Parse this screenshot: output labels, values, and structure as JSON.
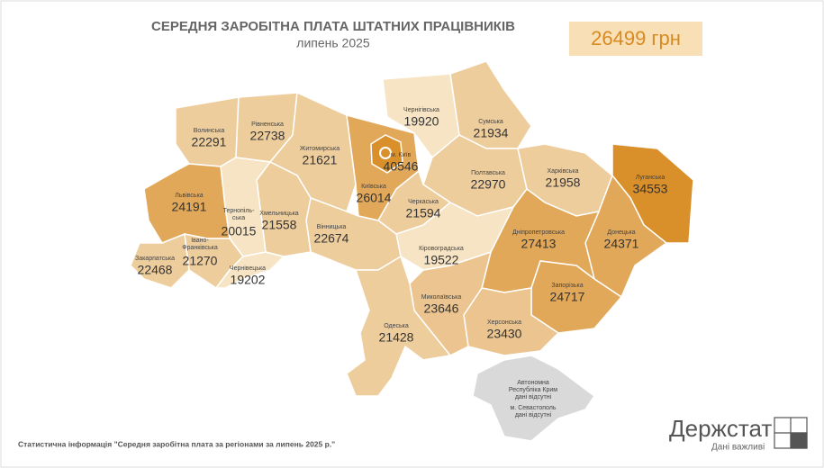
{
  "header": {
    "title": "СЕРЕДНЯ ЗАРОБІТНА ПЛАТА ШТАТНИХ ПРАЦІВНИКІВ",
    "subtitle": "липень 2025",
    "average": "26499 грн"
  },
  "regions": [
    {
      "name": "Волинська",
      "value": 22291,
      "color": "#eecd9d"
    },
    {
      "name": "Рівненська",
      "value": 22738,
      "color": "#eecd9d"
    },
    {
      "name": "Житомирська",
      "value": 21621,
      "color": "#eecd9d"
    },
    {
      "name": "Київська",
      "value": 26014,
      "color": "#e2a85a"
    },
    {
      "name": "Чернігівська",
      "value": 19920,
      "color": "#f6e4c4"
    },
    {
      "name": "Сумська",
      "value": 21934,
      "color": "#eecd9d"
    },
    {
      "name": "Полтавська",
      "value": 22970,
      "color": "#eecd9d"
    },
    {
      "name": "Харківська",
      "value": 21958,
      "color": "#eecd9d"
    },
    {
      "name": "Луганська",
      "value": 34553,
      "color": "#d98f2a"
    },
    {
      "name": "Донецька",
      "value": 24371,
      "color": "#e2a85a"
    },
    {
      "name": "Дніпропетровська",
      "value": 27413,
      "color": "#e2a85a"
    },
    {
      "name": "Запорізька",
      "value": 24717,
      "color": "#e2a85a"
    },
    {
      "name": "Херсонська",
      "value": 23430,
      "color": "#ecc48f"
    },
    {
      "name": "Миколаївська",
      "value": 23646,
      "color": "#ecc48f"
    },
    {
      "name": "Кіровоградська",
      "value": 19522,
      "color": "#f6e4c4"
    },
    {
      "name": "Черкаська",
      "value": 21594,
      "color": "#eecd9d"
    },
    {
      "name": "Вінницька",
      "value": 22674,
      "color": "#eecd9d"
    },
    {
      "name": "Хмельницька",
      "value": 21558,
      "color": "#eecd9d"
    },
    {
      "name": [
        "Тернопіль-",
        "ська"
      ],
      "value": 20015,
      "color": "#f6e4c4"
    },
    {
      "name": "Львівська",
      "value": 24191,
      "color": "#e2a85a"
    },
    {
      "name": "Закарпатська",
      "value": 22468,
      "color": "#eecd9d"
    },
    {
      "name": [
        "Івано-",
        "Франківська"
      ],
      "value": 21270,
      "color": "#eecd9d"
    },
    {
      "name": "Чернівецька",
      "value": 19202,
      "color": "#f6e4c4"
    },
    {
      "name": "Одеська",
      "value": 21428,
      "color": "#eecd9d"
    },
    {
      "name": "м. Київ",
      "value": 40546,
      "color": "#d98f2a"
    }
  ],
  "crimea": {
    "lines": [
      "Автономна",
      "Республіка Крим",
      "дані відсутні",
      "м. Севастополь",
      "дані відсутні"
    ],
    "color": "#d9d9d9"
  },
  "footer": {
    "source": "Статистична інформація \"Середня заробітна плата за регіонами за липень 2025 р.\"",
    "logo": "Держстат",
    "tagline": "Дані важливі"
  }
}
